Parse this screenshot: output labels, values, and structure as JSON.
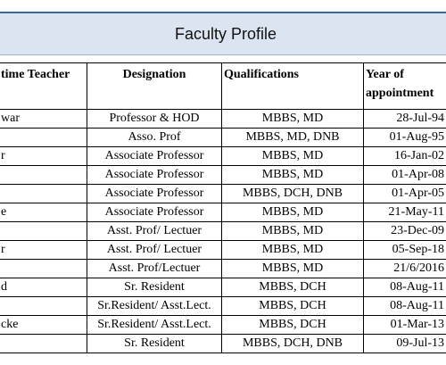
{
  "header": {
    "title": "Faculty Profile"
  },
  "table": {
    "columns": [
      "time Teacher",
      "Designation",
      "Qualifications",
      "Year of appointment"
    ],
    "rows": [
      {
        "name": "war",
        "designation": "Professor  & HOD",
        "qualifications": "MBBS, MD",
        "year": "28-Jul-94"
      },
      {
        "designation": "Asso. Prof",
        "qualifications": "MBBS, MD, DNB",
        "year": "01-Aug-95"
      },
      {
        "name": "r",
        "designation": "Associate Professor",
        "qualifications": "MBBS, MD",
        "year": "16-Jan-02"
      },
      {
        "designation": "Associate Professor",
        "qualifications": "MBBS, MD",
        "year": "01-Apr-08"
      },
      {
        "designation": "Associate Professor",
        "qualifications": "MBBS, DCH, DNB",
        "year": "01-Apr-05"
      },
      {
        "name": "e",
        "designation": "Associate Professor",
        "qualifications": "MBBS, MD",
        "year": "21-May-11"
      },
      {
        "designation": "Asst. Prof/ Lectuer",
        "qualifications": "MBBS, MD",
        "year": "23-Dec-09"
      },
      {
        "name": "r",
        "designation": "Asst. Prof/ Lectuer",
        "qualifications": "MBBS, MD",
        "year": "05-Sep-18"
      },
      {
        "designation": "Asst. Prof/Lectuer",
        "qualifications": "MBBS, MD",
        "year": "21/6/2016"
      },
      {
        "name": "d",
        "designation": "Sr. Resident",
        "qualifications": "MBBS, DCH",
        "year": "08-Aug-11"
      },
      {
        "designation": "Sr.Resident/ Asst.Lect.",
        "qualifications": "MBBS, DCH",
        "year": "08-Aug-11"
      },
      {
        "name": "cke",
        "designation": "Sr.Resident/ Asst.Lect.",
        "qualifications": "MBBS, DCH",
        "year": "01-Mar-13"
      },
      {
        "designation": "Sr. Resident",
        "qualifications": "MBBS, DCH, DNB",
        "year": "09-Jul-13"
      }
    ]
  }
}
